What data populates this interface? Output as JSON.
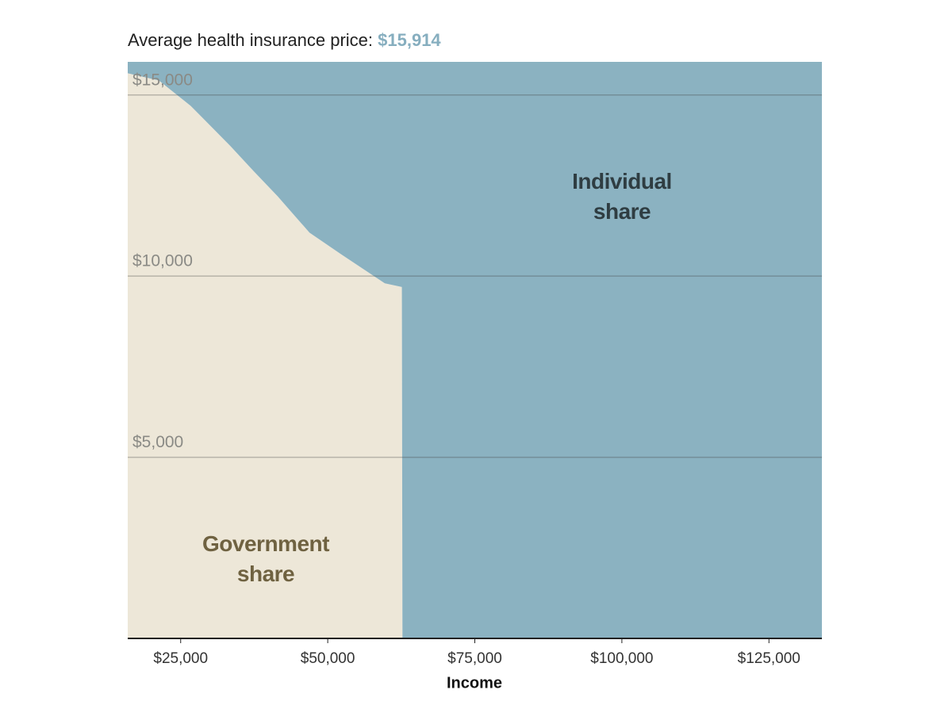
{
  "chart_data": {
    "type": "stacked_area",
    "title": "Average health insurance price:",
    "price_label": "$15,914",
    "x_label": "Income",
    "x": [
      16000,
      21300,
      26700,
      33400,
      37400,
      41500,
      46900,
      52300,
      59700,
      62600,
      62700,
      134000
    ],
    "series": [
      {
        "name": "Government share",
        "color": "#ede7d8",
        "label_color": "#6f6241",
        "values": [
          15600,
          15400,
          14700,
          13600,
          12900,
          12200,
          11200,
          10600,
          9800,
          9700,
          0,
          0
        ]
      },
      {
        "name": "Individual share",
        "color": "#8bb2c1",
        "label_color": "#2f3d42",
        "values": [
          314,
          514,
          1214,
          2314,
          3014,
          3714,
          4714,
          5314,
          6114,
          6214,
          15914,
          15914
        ]
      }
    ],
    "xlim": [
      16000,
      134000
    ],
    "xticks": [
      {
        "value": 25000,
        "label": "$25,000"
      },
      {
        "value": 50000,
        "label": "$50,000"
      },
      {
        "value": 75000,
        "label": "$75,000"
      },
      {
        "value": 100000,
        "label": "$100,000"
      },
      {
        "value": 125000,
        "label": "$125,000"
      }
    ],
    "ylim": [
      0,
      15914
    ],
    "yticks": [
      {
        "value": 5000,
        "label": "$5,000"
      },
      {
        "value": 10000,
        "label": "$10,000"
      },
      {
        "value": 15000,
        "label": "$15,000"
      }
    ],
    "grid": true
  }
}
